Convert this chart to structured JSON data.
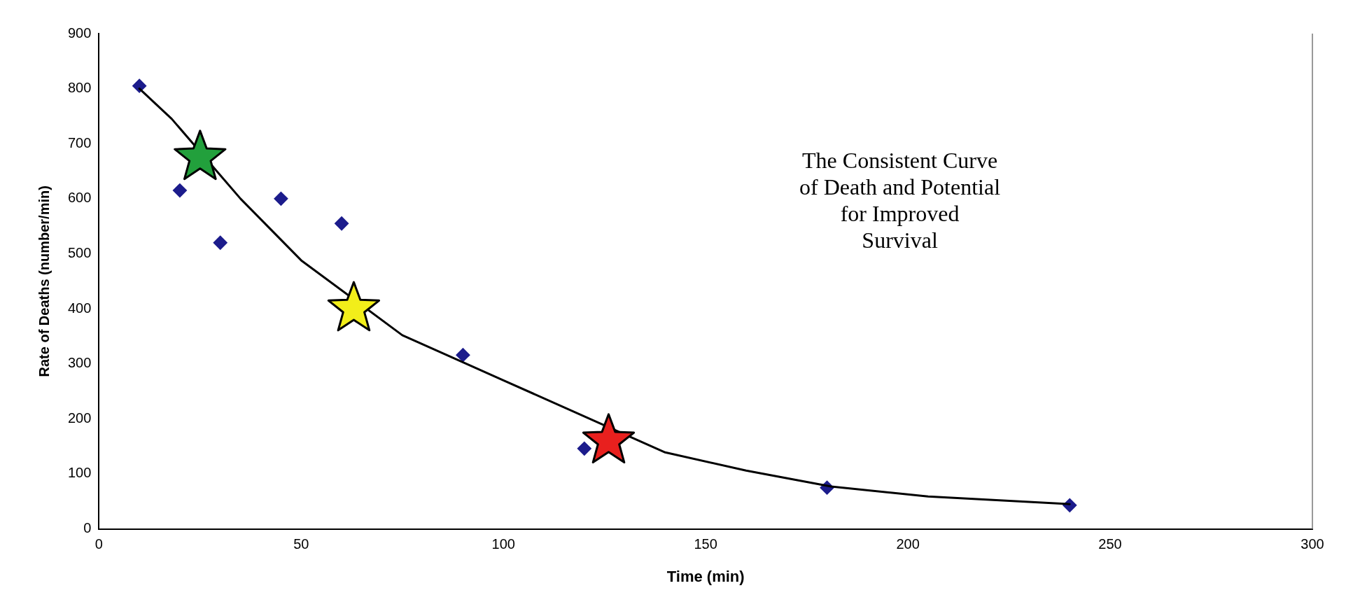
{
  "chart_data": {
    "type": "scatter",
    "xlabel": "Time (min)",
    "ylabel": "Rate of Deaths (number/min)",
    "xlim": [
      0,
      300
    ],
    "xticks": [
      0,
      50,
      100,
      150,
      200,
      250,
      300
    ],
    "ylim": [
      0,
      900
    ],
    "yticks": [
      0,
      100,
      200,
      300,
      400,
      500,
      600,
      700,
      800,
      900
    ],
    "grid": false,
    "legend": false,
    "annotations": [
      "The Consistent Curve\nof Death and Potential\nfor Improved\nSurvival"
    ],
    "series": [
      {
        "type": "line",
        "color": "#000000",
        "marker": "none",
        "line_style": "solid",
        "x": [
          10,
          18,
          35,
          50,
          75,
          100,
          140,
          160,
          181,
          205,
          240
        ],
        "values": [
          800,
          745,
          600,
          488,
          352,
          270,
          139,
          106,
          77,
          59,
          45
        ]
      },
      {
        "type": "scatter",
        "color": "#1c1c8c",
        "marker": "diamond",
        "x": [
          10,
          20,
          30,
          45,
          60,
          90,
          120,
          180,
          240
        ],
        "values": [
          805,
          615,
          520,
          600,
          555,
          316,
          146,
          75,
          43
        ]
      },
      {
        "type": "scatter",
        "color": "#22a03c",
        "marker": "star",
        "x": [
          25
        ],
        "values": [
          675
        ]
      },
      {
        "type": "scatter",
        "color": "#f2ee1a",
        "marker": "star",
        "x": [
          63
        ],
        "values": [
          400
        ]
      },
      {
        "type": "scatter",
        "color": "#e8201e",
        "marker": "star",
        "x": [
          126
        ],
        "values": [
          160
        ]
      }
    ]
  }
}
